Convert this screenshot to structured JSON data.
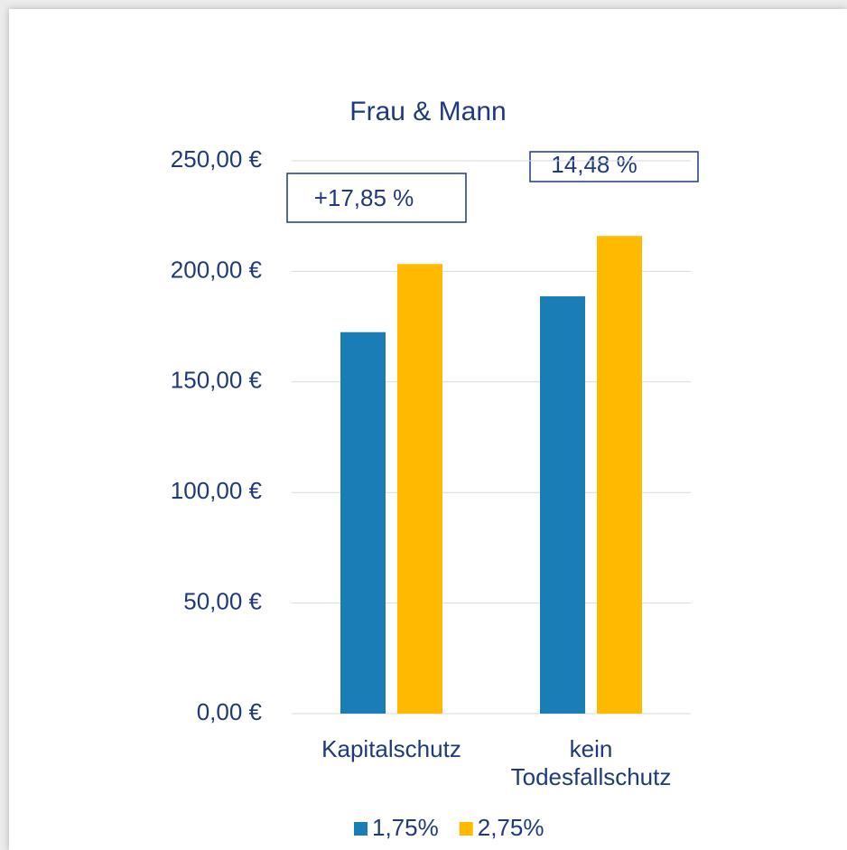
{
  "chart_data": {
    "type": "bar",
    "title": "Frau & Mann",
    "categories": [
      "Kapitalschutz",
      "kein Todesfallschutz"
    ],
    "series": [
      {
        "name": "1,75%",
        "color": "#1a7db6",
        "values": [
          172.5,
          188.7
        ]
      },
      {
        "name": "2,75%",
        "color": "#ffba00",
        "values": [
          203.3,
          216.0
        ]
      }
    ],
    "ylim": [
      0,
      250
    ],
    "yticks": [
      {
        "value": 0,
        "label": "0,00 €"
      },
      {
        "value": 50,
        "label": "50,00 €"
      },
      {
        "value": 100,
        "label": "100,00 €"
      },
      {
        "value": 150,
        "label": "150,00 €"
      },
      {
        "value": 200,
        "label": "200,00 €"
      },
      {
        "value": 250,
        "label": "250,00 €"
      }
    ],
    "grid": true,
    "annotations": [
      "+17,85 %",
      "14,48 %"
    ],
    "legend": "bottom"
  }
}
